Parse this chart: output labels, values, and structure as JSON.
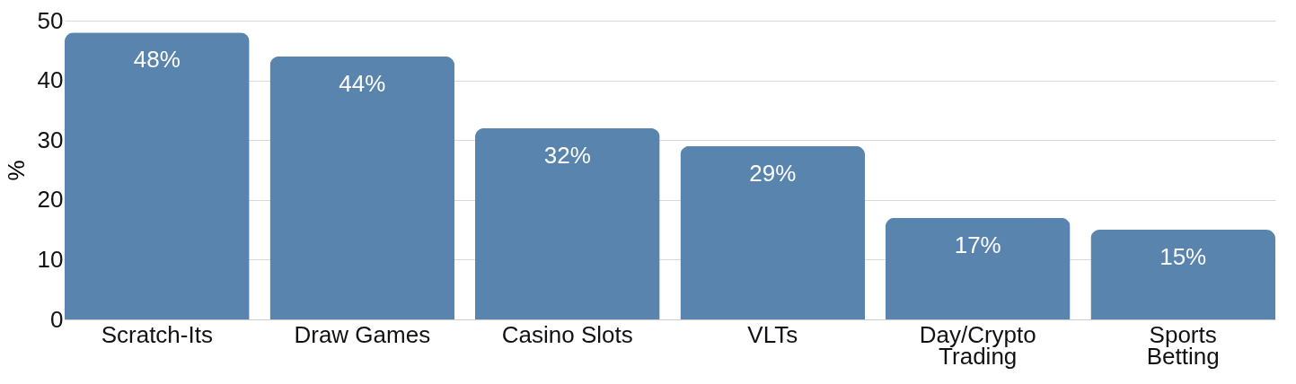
{
  "chart_data": {
    "type": "bar",
    "ylabel": "%",
    "categories": [
      "Scratch-Its",
      "Draw Games",
      "Casino Slots",
      "VLTs",
      "Day/Crypto\nTrading",
      "Sports\nBetting"
    ],
    "values": [
      48,
      44,
      32,
      29,
      17,
      15
    ],
    "value_labels": [
      "48%",
      "44%",
      "32%",
      "29%",
      "17%",
      "15%"
    ],
    "color": "#5884ad",
    "ylim": [
      0,
      50
    ],
    "yticks": [
      0,
      10,
      20,
      30,
      40,
      50
    ],
    "grid": "y"
  }
}
